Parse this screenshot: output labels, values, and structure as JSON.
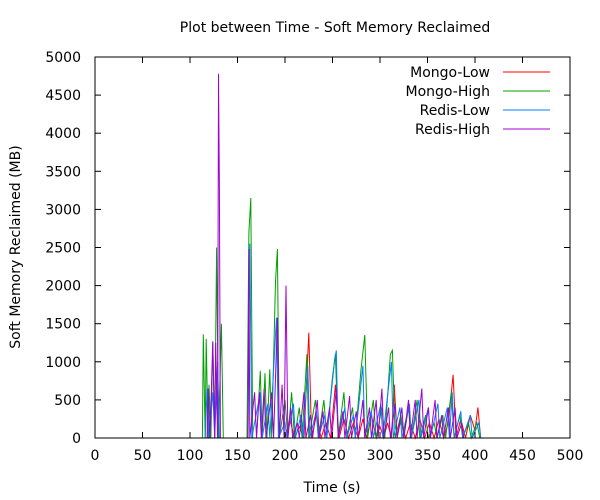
{
  "chart_data": {
    "type": "line",
    "title": "Plot between Time - Soft Memory Reclaimed",
    "xlabel": "Time (s)",
    "ylabel": "Soft Memory Reclaimed (MB)",
    "xlim": [
      0,
      500
    ],
    "ylim": [
      0,
      5000
    ],
    "xticks": [
      0,
      50,
      100,
      150,
      200,
      250,
      300,
      350,
      400,
      450,
      500
    ],
    "yticks": [
      0,
      500,
      1000,
      1500,
      2000,
      2500,
      3000,
      3500,
      4000,
      4500,
      5000
    ],
    "grid": false,
    "legend_position": "top-right",
    "series": [
      {
        "name": "Mongo-Low",
        "color": "#ff0000",
        "points": [
          [
            200,
            0
          ],
          [
            205,
            250
          ],
          [
            210,
            0
          ],
          [
            215,
            150
          ],
          [
            220,
            0
          ],
          [
            225,
            1380
          ],
          [
            228,
            0
          ],
          [
            233,
            300
          ],
          [
            238,
            0
          ],
          [
            243,
            200
          ],
          [
            248,
            0
          ],
          [
            253,
            700
          ],
          [
            257,
            0
          ],
          [
            262,
            250
          ],
          [
            267,
            0
          ],
          [
            272,
            200
          ],
          [
            277,
            0
          ],
          [
            282,
            250
          ],
          [
            286,
            0
          ],
          [
            291,
            300
          ],
          [
            296,
            0
          ],
          [
            300,
            150
          ],
          [
            304,
            0
          ],
          [
            308,
            200
          ],
          [
            312,
            0
          ],
          [
            315,
            700
          ],
          [
            318,
            0
          ],
          [
            322,
            250
          ],
          [
            327,
            0
          ],
          [
            332,
            200
          ],
          [
            337,
            0
          ],
          [
            342,
            250
          ],
          [
            347,
            0
          ],
          [
            352,
            200
          ],
          [
            357,
            0
          ],
          [
            362,
            250
          ],
          [
            367,
            0
          ],
          [
            372,
            200
          ],
          [
            377,
            830
          ],
          [
            380,
            0
          ],
          [
            385,
            250
          ],
          [
            390,
            0
          ],
          [
            395,
            300
          ],
          [
            400,
            100
          ],
          [
            403,
            400
          ],
          [
            406,
            0
          ]
        ]
      },
      {
        "name": "Mongo-High",
        "color": "#00a000",
        "points": [
          [
            113,
            0
          ],
          [
            114,
            1360
          ],
          [
            116,
            0
          ],
          [
            117,
            1300
          ],
          [
            119,
            0
          ],
          [
            120,
            700
          ],
          [
            122,
            0
          ],
          [
            124,
            1250
          ],
          [
            126,
            0
          ],
          [
            128,
            2500
          ],
          [
            130,
            0
          ],
          [
            133,
            1500
          ],
          [
            135,
            0
          ],
          [
            160,
            0
          ],
          [
            162,
            2700
          ],
          [
            164,
            3150
          ],
          [
            166,
            0
          ],
          [
            170,
            0
          ],
          [
            174,
            880
          ],
          [
            176,
            0
          ],
          [
            179,
            850
          ],
          [
            181,
            0
          ],
          [
            184,
            900
          ],
          [
            186,
            0
          ],
          [
            190,
            2050
          ],
          [
            192,
            2480
          ],
          [
            194,
            0
          ],
          [
            200,
            500
          ],
          [
            203,
            0
          ],
          [
            207,
            600
          ],
          [
            210,
            0
          ],
          [
            215,
            400
          ],
          [
            218,
            0
          ],
          [
            223,
            1100
          ],
          [
            225,
            0
          ],
          [
            232,
            500
          ],
          [
            235,
            0
          ],
          [
            241,
            500
          ],
          [
            244,
            0
          ],
          [
            250,
            800
          ],
          [
            253,
            1100
          ],
          [
            256,
            0
          ],
          [
            262,
            600
          ],
          [
            265,
            0
          ],
          [
            271,
            400
          ],
          [
            274,
            0
          ],
          [
            280,
            900
          ],
          [
            284,
            1350
          ],
          [
            287,
            0
          ],
          [
            293,
            500
          ],
          [
            296,
            0
          ],
          [
            302,
            400
          ],
          [
            305,
            0
          ],
          [
            311,
            1100
          ],
          [
            313,
            1150
          ],
          [
            316,
            0
          ],
          [
            322,
            300
          ],
          [
            325,
            0
          ],
          [
            330,
            400
          ],
          [
            333,
            0
          ],
          [
            339,
            500
          ],
          [
            342,
            0
          ],
          [
            348,
            300
          ],
          [
            351,
            0
          ],
          [
            357,
            200
          ],
          [
            360,
            0
          ],
          [
            366,
            300
          ],
          [
            369,
            0
          ],
          [
            375,
            600
          ],
          [
            378,
            0
          ],
          [
            384,
            300
          ],
          [
            387,
            0
          ],
          [
            393,
            200
          ],
          [
            396,
            0
          ],
          [
            402,
            200
          ],
          [
            405,
            0
          ]
        ]
      },
      {
        "name": "Redis-Low",
        "color": "#0080ff",
        "points": [
          [
            116,
            0
          ],
          [
            118,
            650
          ],
          [
            120,
            0
          ],
          [
            124,
            600
          ],
          [
            126,
            0
          ],
          [
            129,
            1000
          ],
          [
            131,
            0
          ],
          [
            161,
            0
          ],
          [
            163,
            2550
          ],
          [
            165,
            0
          ],
          [
            174,
            600
          ],
          [
            176,
            0
          ],
          [
            182,
            450
          ],
          [
            184,
            0
          ],
          [
            191,
            1580
          ],
          [
            193,
            0
          ],
          [
            200,
            200
          ],
          [
            202,
            0
          ],
          [
            209,
            450
          ],
          [
            211,
            0
          ],
          [
            217,
            300
          ],
          [
            219,
            0
          ],
          [
            224,
            950
          ],
          [
            226,
            0
          ],
          [
            233,
            350
          ],
          [
            235,
            0
          ],
          [
            242,
            300
          ],
          [
            244,
            0
          ],
          [
            252,
            1000
          ],
          [
            254,
            1150
          ],
          [
            256,
            0
          ],
          [
            263,
            400
          ],
          [
            265,
            0
          ],
          [
            272,
            300
          ],
          [
            274,
            0
          ],
          [
            282,
            950
          ],
          [
            284,
            0
          ],
          [
            291,
            350
          ],
          [
            293,
            0
          ],
          [
            301,
            450
          ],
          [
            303,
            0
          ],
          [
            312,
            1000
          ],
          [
            314,
            0
          ],
          [
            321,
            400
          ],
          [
            323,
            0
          ],
          [
            331,
            450
          ],
          [
            333,
            0
          ],
          [
            341,
            500
          ],
          [
            343,
            0
          ],
          [
            351,
            400
          ],
          [
            353,
            0
          ],
          [
            361,
            450
          ],
          [
            363,
            0
          ],
          [
            371,
            400
          ],
          [
            373,
            0
          ],
          [
            376,
            600
          ],
          [
            378,
            0
          ],
          [
            385,
            350
          ],
          [
            387,
            0
          ],
          [
            395,
            300
          ],
          [
            397,
            0
          ],
          [
            404,
            200
          ],
          [
            406,
            0
          ]
        ]
      },
      {
        "name": "Redis-High",
        "color": "#a000d0",
        "points": [
          [
            118,
            0
          ],
          [
            119,
            650
          ],
          [
            121,
            0
          ],
          [
            124,
            1270
          ],
          [
            126,
            0
          ],
          [
            127,
            1250
          ],
          [
            129,
            0
          ],
          [
            130,
            4780
          ],
          [
            131,
            3270
          ],
          [
            132,
            0
          ],
          [
            161,
            0
          ],
          [
            162,
            2480
          ],
          [
            163,
            0
          ],
          [
            168,
            600
          ],
          [
            170,
            0
          ],
          [
            173,
            600
          ],
          [
            175,
            0
          ],
          [
            178,
            650
          ],
          [
            180,
            0
          ],
          [
            186,
            600
          ],
          [
            188,
            0
          ],
          [
            192,
            1580
          ],
          [
            194,
            0
          ],
          [
            197,
            700
          ],
          [
            199,
            0
          ],
          [
            201,
            2000
          ],
          [
            203,
            0
          ],
          [
            206,
            400
          ],
          [
            208,
            0
          ],
          [
            213,
            200
          ],
          [
            215,
            0
          ],
          [
            220,
            600
          ],
          [
            222,
            0
          ],
          [
            227,
            300
          ],
          [
            229,
            0
          ],
          [
            234,
            500
          ],
          [
            236,
            0
          ],
          [
            240,
            350
          ],
          [
            242,
            0
          ],
          [
            247,
            400
          ],
          [
            249,
            0
          ],
          [
            254,
            650
          ],
          [
            256,
            0
          ],
          [
            261,
            350
          ],
          [
            263,
            0
          ],
          [
            268,
            550
          ],
          [
            270,
            0
          ],
          [
            275,
            350
          ],
          [
            277,
            0
          ],
          [
            282,
            500
          ],
          [
            284,
            0
          ],
          [
            289,
            400
          ],
          [
            291,
            0
          ],
          [
            296,
            500
          ],
          [
            298,
            0
          ],
          [
            302,
            650
          ],
          [
            304,
            0
          ],
          [
            309,
            400
          ],
          [
            311,
            0
          ],
          [
            316,
            450
          ],
          [
            318,
            0
          ],
          [
            323,
            400
          ],
          [
            325,
            0
          ],
          [
            330,
            500
          ],
          [
            332,
            0
          ],
          [
            337,
            500
          ],
          [
            339,
            0
          ],
          [
            344,
            650
          ],
          [
            346,
            0
          ],
          [
            351,
            400
          ],
          [
            353,
            0
          ],
          [
            358,
            500
          ],
          [
            360,
            0
          ],
          [
            365,
            300
          ],
          [
            367,
            0
          ],
          [
            372,
            400
          ],
          [
            374,
            0
          ],
          [
            379,
            400
          ],
          [
            381,
            0
          ],
          [
            386,
            200
          ],
          [
            388,
            0
          ]
        ]
      }
    ]
  }
}
